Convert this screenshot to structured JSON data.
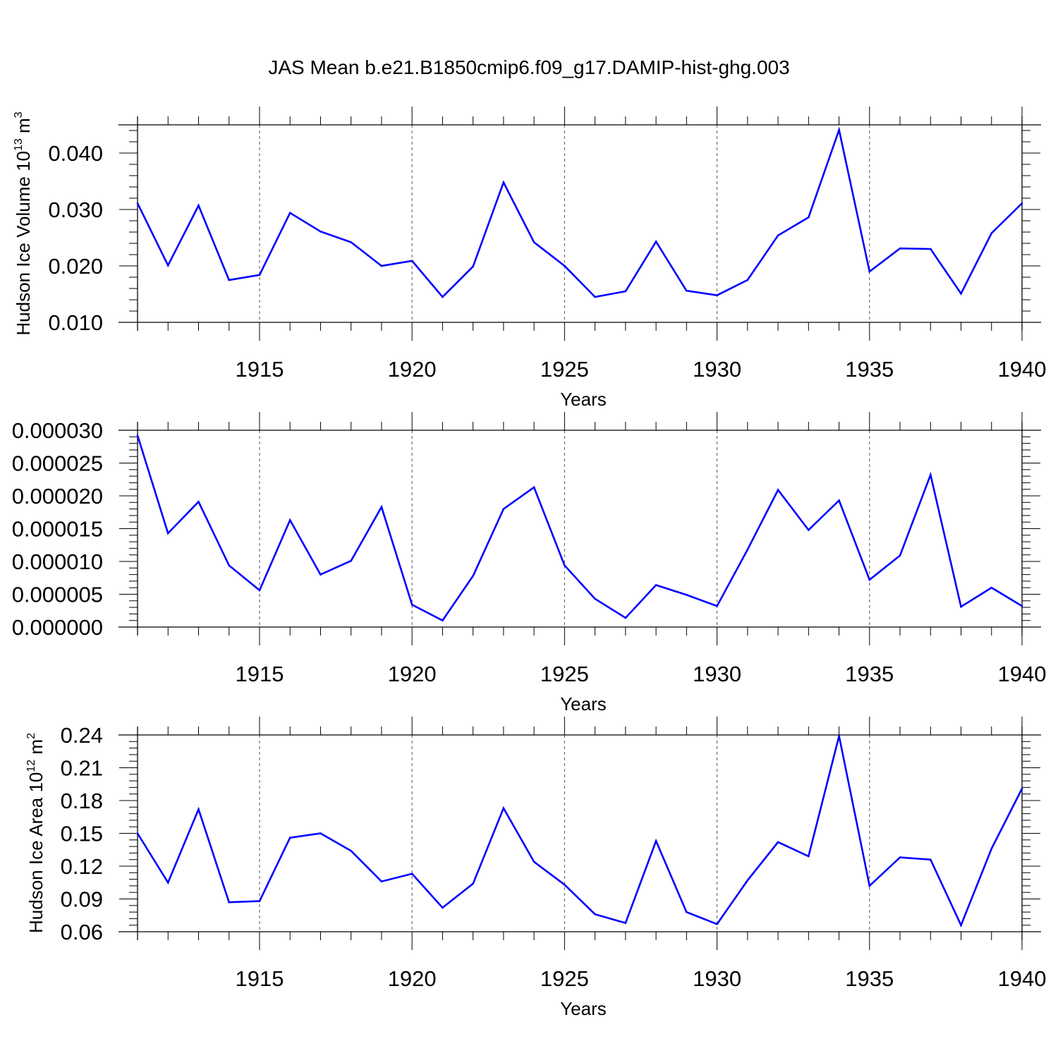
{
  "title": "JAS Mean b.e21.B1850cmip6.f09_g17.DAMIP-hist-ghg.003",
  "colors": {
    "line": "#0000ff",
    "axis": "#000000",
    "grid": "#555555"
  },
  "chart_data": [
    {
      "type": "line",
      "ylabel": "Hudson Ice Volume 10",
      "ylabel_sup": "13",
      "ylabel_unit": " m",
      "ylabel_unit_sup": "3",
      "xlabel": "Years",
      "xlim": [
        1911,
        1940
      ],
      "ylim": [
        0.01,
        0.045
      ],
      "xticks": [
        1915,
        1920,
        1925,
        1930,
        1935,
        1940
      ],
      "xtick_labels": [
        "1915",
        "1920",
        "1925",
        "1930",
        "1935",
        "1940"
      ],
      "yticks": [
        0.01,
        0.02,
        0.03,
        0.04
      ],
      "ytick_labels": [
        "0.010",
        "0.020",
        "0.030",
        "0.040"
      ],
      "yminor_step": 0.002,
      "grid": "vertical dashed",
      "series": [
        {
          "name": "Hudson Ice Volume",
          "x": [
            1911,
            1912,
            1913,
            1914,
            1915,
            1916,
            1917,
            1918,
            1919,
            1920,
            1921,
            1922,
            1923,
            1924,
            1925,
            1926,
            1927,
            1928,
            1929,
            1930,
            1931,
            1932,
            1933,
            1934,
            1935,
            1936,
            1937,
            1938,
            1939,
            1940
          ],
          "values": [
            0.0311,
            0.0201,
            0.0307,
            0.0175,
            0.0184,
            0.0294,
            0.0261,
            0.0242,
            0.02,
            0.0209,
            0.0145,
            0.0199,
            0.0348,
            0.0242,
            0.02,
            0.0145,
            0.0155,
            0.0243,
            0.0156,
            0.0148,
            0.0175,
            0.0254,
            0.0286,
            0.0441,
            0.019,
            0.0231,
            0.023,
            0.0151,
            0.0258,
            0.0311
          ]
        }
      ]
    },
    {
      "type": "line",
      "ylabel": "",
      "xlabel": "Years",
      "xlim": [
        1911,
        1940
      ],
      "ylim": [
        0.0,
        3e-05
      ],
      "xticks": [
        1915,
        1920,
        1925,
        1930,
        1935,
        1940
      ],
      "xtick_labels": [
        "1915",
        "1920",
        "1925",
        "1930",
        "1935",
        "1940"
      ],
      "yticks": [
        0.0,
        5e-06,
        1e-05,
        1.5e-05,
        2e-05,
        2.5e-05,
        3e-05
      ],
      "ytick_labels": [
        "0.000000",
        "0.000005",
        "0.000010",
        "0.000015",
        "0.000020",
        "0.000025",
        "0.000030"
      ],
      "yminor_step": 1e-06,
      "grid": "vertical dashed",
      "series": [
        {
          "name": "series-2",
          "x": [
            1911,
            1912,
            1913,
            1914,
            1915,
            1916,
            1917,
            1918,
            1919,
            1920,
            1921,
            1922,
            1923,
            1924,
            1925,
            1926,
            1927,
            1928,
            1929,
            1930,
            1931,
            1932,
            1933,
            1934,
            1935,
            1936,
            1937,
            1938,
            1939,
            1940
          ],
          "values": [
            2.92e-05,
            1.43e-05,
            1.91e-05,
            9.4e-06,
            5.6e-06,
            1.63e-05,
            8e-06,
            1.01e-05,
            1.83e-05,
            3.4e-06,
            1e-06,
            7.8e-06,
            1.8e-05,
            2.13e-05,
            9.4e-06,
            4.3e-06,
            1.4e-06,
            6.4e-06,
            4.9e-06,
            3.2e-06,
            1.18e-05,
            2.09e-05,
            1.48e-05,
            1.93e-05,
            7.2e-06,
            1.09e-05,
            2.32e-05,
            3.1e-06,
            6e-06,
            3.2e-06
          ]
        }
      ]
    },
    {
      "type": "line",
      "ylabel": "Hudson Ice Area 10",
      "ylabel_sup": "12",
      "ylabel_unit": " m",
      "ylabel_unit_sup": "2",
      "xlabel": "Years",
      "xlim": [
        1911,
        1940
      ],
      "ylim": [
        0.06,
        0.24
      ],
      "xticks": [
        1915,
        1920,
        1925,
        1930,
        1935,
        1940
      ],
      "xtick_labels": [
        "1915",
        "1920",
        "1925",
        "1930",
        "1935",
        "1940"
      ],
      "yticks": [
        0.06,
        0.09,
        0.12,
        0.15,
        0.18,
        0.21,
        0.24
      ],
      "ytick_labels": [
        "0.06",
        "0.09",
        "0.12",
        "0.15",
        "0.18",
        "0.21",
        "0.24"
      ],
      "yminor_step": 0.006,
      "grid": "vertical dashed",
      "series": [
        {
          "name": "Hudson Ice Area",
          "x": [
            1911,
            1912,
            1913,
            1914,
            1915,
            1916,
            1917,
            1918,
            1919,
            1920,
            1921,
            1922,
            1923,
            1924,
            1925,
            1926,
            1927,
            1928,
            1929,
            1930,
            1931,
            1932,
            1933,
            1934,
            1935,
            1936,
            1937,
            1938,
            1939,
            1940
          ],
          "values": [
            0.15,
            0.105,
            0.172,
            0.087,
            0.088,
            0.146,
            0.15,
            0.134,
            0.106,
            0.113,
            0.082,
            0.104,
            0.173,
            0.124,
            0.103,
            0.076,
            0.068,
            0.143,
            0.078,
            0.067,
            0.107,
            0.142,
            0.129,
            0.239,
            0.102,
            0.128,
            0.126,
            0.066,
            0.136,
            0.191
          ]
        }
      ]
    }
  ]
}
